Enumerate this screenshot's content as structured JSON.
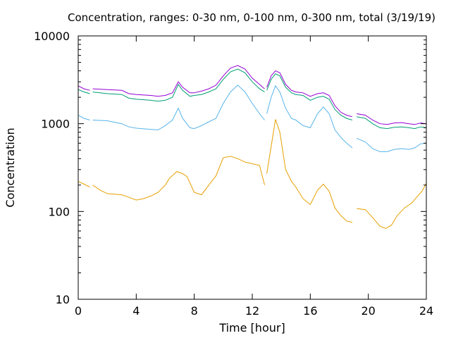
{
  "chart_data": {
    "type": "line",
    "title": "Concentration, ranges: 0-30 nm, 0-100 nm, 0-300 nm, total (3/19/19)",
    "xlabel": "Time [hour]",
    "ylabel": "Concentration",
    "xlim": [
      0,
      24
    ],
    "ylim": [
      10,
      10000
    ],
    "yscale": "log",
    "grid": false,
    "legend": "none",
    "x_ticks": [
      "0",
      "4",
      "8",
      "12",
      "16",
      "20",
      "24"
    ],
    "y_ticks": [
      "10",
      "100",
      "1000",
      "10000"
    ],
    "x_tick_values": [
      0,
      4,
      8,
      12,
      16,
      20,
      24
    ],
    "y_tick_values": [
      10,
      100,
      1000,
      10000
    ],
    "series": [
      {
        "color": "#e69f00",
        "segments": [
          [
            [
              0.0,
              220
            ],
            [
              0.4,
              205
            ],
            [
              0.8,
              190
            ]
          ],
          [
            [
              1.0,
              200
            ],
            [
              1.5,
              175
            ],
            [
              2.0,
              160
            ],
            [
              3.0,
              155
            ],
            [
              3.5,
              145
            ],
            [
              4.0,
              135
            ],
            [
              4.5,
              140
            ],
            [
              5.0,
              150
            ],
            [
              5.5,
              165
            ],
            [
              6.0,
              200
            ],
            [
              6.3,
              240
            ],
            [
              6.8,
              285
            ],
            [
              7.2,
              270
            ],
            [
              7.5,
              250
            ],
            [
              8.0,
              165
            ],
            [
              8.5,
              155
            ],
            [
              9.0,
              200
            ],
            [
              9.5,
              255
            ],
            [
              10.0,
              410
            ],
            [
              10.5,
              425
            ],
            [
              11.0,
              400
            ],
            [
              11.5,
              365
            ],
            [
              12.0,
              350
            ],
            [
              12.5,
              335
            ],
            [
              12.85,
              200
            ]
          ],
          [
            [
              13.0,
              270
            ],
            [
              13.3,
              550
            ],
            [
              13.6,
              1120
            ],
            [
              13.9,
              800
            ],
            [
              14.3,
              300
            ],
            [
              14.7,
              220
            ],
            [
              15.0,
              190
            ],
            [
              15.5,
              140
            ],
            [
              16.0,
              120
            ],
            [
              16.5,
              175
            ],
            [
              16.9,
              205
            ],
            [
              17.3,
              170
            ],
            [
              17.7,
              110
            ],
            [
              18.1,
              90
            ],
            [
              18.5,
              78
            ],
            [
              18.9,
              75
            ]
          ],
          [
            [
              19.2,
              108
            ],
            [
              19.8,
              105
            ],
            [
              20.3,
              85
            ],
            [
              20.8,
              68
            ],
            [
              21.2,
              64
            ],
            [
              21.6,
              70
            ],
            [
              22.0,
              90
            ],
            [
              22.5,
              110
            ],
            [
              23.0,
              125
            ],
            [
              23.4,
              150
            ],
            [
              23.7,
              170
            ],
            [
              24.0,
              210
            ]
          ]
        ]
      },
      {
        "color": "#56b4e9",
        "segments": [
          [
            [
              0.0,
              1250
            ],
            [
              0.4,
              1150
            ],
            [
              0.8,
              1100
            ]
          ],
          [
            [
              1.0,
              1100
            ],
            [
              2.0,
              1080
            ],
            [
              3.0,
              1000
            ],
            [
              3.5,
              920
            ],
            [
              4.0,
              890
            ],
            [
              5.0,
              860
            ],
            [
              5.5,
              850
            ],
            [
              6.0,
              950
            ],
            [
              6.5,
              1100
            ],
            [
              6.9,
              1500
            ],
            [
              7.2,
              1150
            ],
            [
              7.7,
              900
            ],
            [
              8.0,
              880
            ],
            [
              8.5,
              950
            ],
            [
              9.0,
              1050
            ],
            [
              9.5,
              1150
            ],
            [
              10.0,
              1700
            ],
            [
              10.5,
              2300
            ],
            [
              11.0,
              2750
            ],
            [
              11.5,
              2300
            ],
            [
              12.0,
              1700
            ],
            [
              12.5,
              1300
            ],
            [
              12.85,
              1100
            ]
          ],
          [
            [
              13.0,
              1300
            ],
            [
              13.3,
              2000
            ],
            [
              13.6,
              2700
            ],
            [
              13.9,
              2300
            ],
            [
              14.3,
              1500
            ],
            [
              14.7,
              1150
            ],
            [
              15.0,
              1100
            ],
            [
              15.5,
              950
            ],
            [
              16.0,
              900
            ],
            [
              16.5,
              1300
            ],
            [
              16.9,
              1550
            ],
            [
              17.3,
              1300
            ],
            [
              17.7,
              850
            ],
            [
              18.1,
              700
            ],
            [
              18.5,
              600
            ],
            [
              18.9,
              530
            ]
          ],
          [
            [
              19.2,
              680
            ],
            [
              19.8,
              620
            ],
            [
              20.3,
              520
            ],
            [
              20.8,
              480
            ],
            [
              21.3,
              480
            ],
            [
              21.8,
              510
            ],
            [
              22.3,
              520
            ],
            [
              22.8,
              510
            ],
            [
              23.2,
              530
            ],
            [
              23.6,
              590
            ],
            [
              24.0,
              600
            ]
          ]
        ]
      },
      {
        "color": "#009e73",
        "segments": [
          [
            [
              0.0,
              2450
            ],
            [
              0.4,
              2300
            ],
            [
              0.8,
              2200
            ]
          ],
          [
            [
              1.0,
              2300
            ],
            [
              2.0,
              2200
            ],
            [
              3.0,
              2150
            ],
            [
              3.5,
              1950
            ],
            [
              4.0,
              1900
            ],
            [
              5.0,
              1850
            ],
            [
              5.5,
              1800
            ],
            [
              6.0,
              1850
            ],
            [
              6.5,
              2000
            ],
            [
              6.9,
              2800
            ],
            [
              7.2,
              2400
            ],
            [
              7.7,
              2050
            ],
            [
              8.0,
              2100
            ],
            [
              8.5,
              2150
            ],
            [
              9.0,
              2300
            ],
            [
              9.5,
              2500
            ],
            [
              10.0,
              3200
            ],
            [
              10.5,
              3900
            ],
            [
              11.0,
              4200
            ],
            [
              11.5,
              3800
            ],
            [
              12.0,
              3000
            ],
            [
              12.5,
              2500
            ],
            [
              12.85,
              2300
            ]
          ],
          [
            [
              13.0,
              2400
            ],
            [
              13.3,
              3200
            ],
            [
              13.6,
              3700
            ],
            [
              13.9,
              3500
            ],
            [
              14.3,
              2600
            ],
            [
              14.7,
              2250
            ],
            [
              15.0,
              2150
            ],
            [
              15.5,
              2100
            ],
            [
              16.0,
              1850
            ],
            [
              16.5,
              2000
            ],
            [
              16.9,
              2050
            ],
            [
              17.3,
              1900
            ],
            [
              17.7,
              1450
            ],
            [
              18.1,
              1250
            ],
            [
              18.5,
              1150
            ],
            [
              18.9,
              1100
            ]
          ],
          [
            [
              19.2,
              1200
            ],
            [
              19.8,
              1150
            ],
            [
              20.3,
              1000
            ],
            [
              20.8,
              900
            ],
            [
              21.3,
              880
            ],
            [
              21.8,
              910
            ],
            [
              22.3,
              920
            ],
            [
              22.8,
              900
            ],
            [
              23.2,
              880
            ],
            [
              23.6,
              920
            ],
            [
              24.0,
              900
            ]
          ]
        ]
      },
      {
        "color": "#9400d3",
        "segments": [
          [
            [
              0.0,
              2700
            ],
            [
              0.4,
              2500
            ],
            [
              0.8,
              2400
            ]
          ],
          [
            [
              1.0,
              2500
            ],
            [
              2.0,
              2450
            ],
            [
              3.0,
              2400
            ],
            [
              3.5,
              2200
            ],
            [
              4.0,
              2150
            ],
            [
              5.0,
              2100
            ],
            [
              5.5,
              2050
            ],
            [
              6.0,
              2100
            ],
            [
              6.5,
              2250
            ],
            [
              6.9,
              3000
            ],
            [
              7.2,
              2600
            ],
            [
              7.7,
              2250
            ],
            [
              8.0,
              2250
            ],
            [
              8.5,
              2350
            ],
            [
              9.0,
              2500
            ],
            [
              9.5,
              2750
            ],
            [
              10.0,
              3500
            ],
            [
              10.5,
              4300
            ],
            [
              11.0,
              4600
            ],
            [
              11.5,
              4200
            ],
            [
              12.0,
              3300
            ],
            [
              12.5,
              2800
            ],
            [
              12.85,
              2500
            ]
          ],
          [
            [
              13.0,
              2600
            ],
            [
              13.3,
              3500
            ],
            [
              13.6,
              4000
            ],
            [
              13.9,
              3800
            ],
            [
              14.3,
              2800
            ],
            [
              14.7,
              2400
            ],
            [
              15.0,
              2300
            ],
            [
              15.5,
              2250
            ],
            [
              16.0,
              2050
            ],
            [
              16.5,
              2200
            ],
            [
              16.9,
              2250
            ],
            [
              17.3,
              2100
            ],
            [
              17.7,
              1600
            ],
            [
              18.1,
              1350
            ],
            [
              18.5,
              1250
            ],
            [
              18.9,
              1200
            ]
          ],
          [
            [
              19.2,
              1300
            ],
            [
              19.8,
              1250
            ],
            [
              20.3,
              1100
            ],
            [
              20.8,
              1000
            ],
            [
              21.3,
              980
            ],
            [
              21.8,
              1020
            ],
            [
              22.3,
              1030
            ],
            [
              22.8,
              1000
            ],
            [
              23.2,
              980
            ],
            [
              23.6,
              1020
            ],
            [
              24.0,
              1000
            ]
          ]
        ]
      }
    ]
  }
}
